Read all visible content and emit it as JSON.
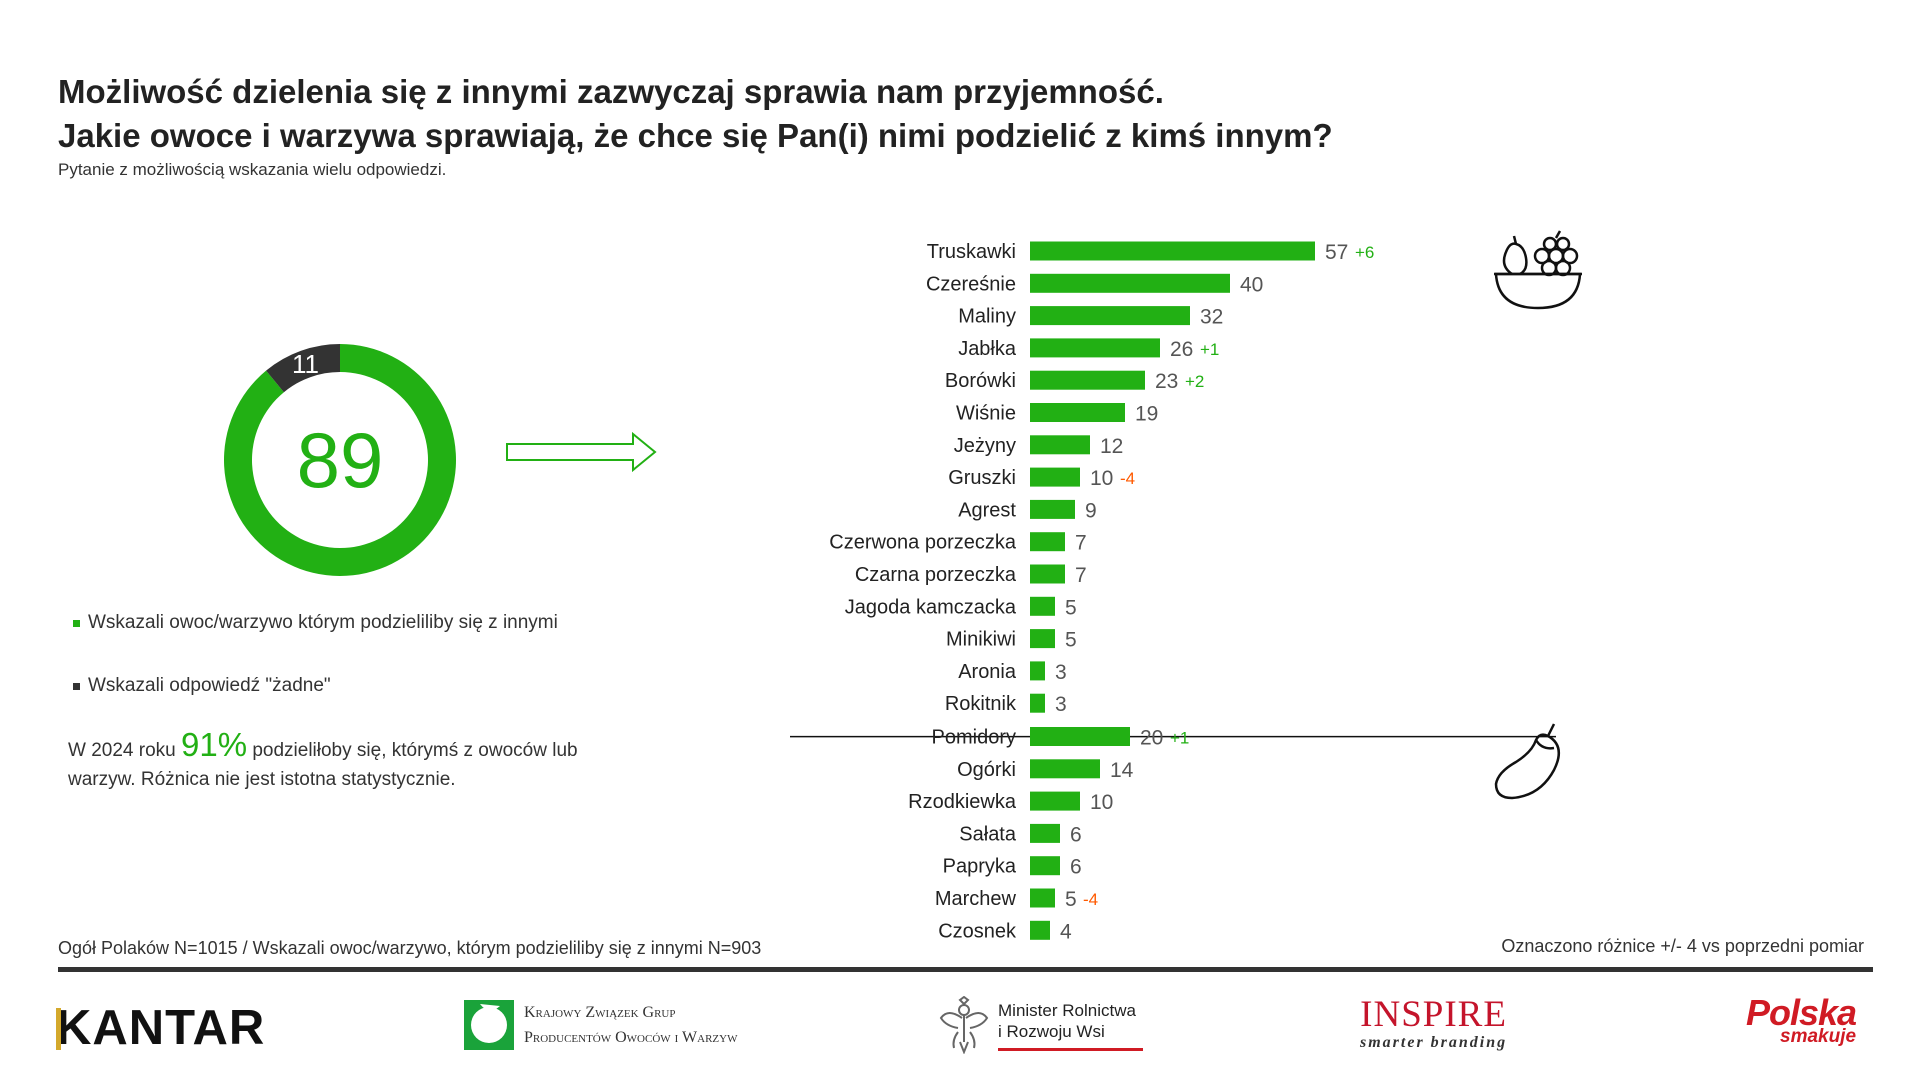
{
  "header": {
    "title_line1": "Możliwość dzielenia się z innymi  zazwyczaj sprawia nam przyjemność.",
    "title_line2": "Jakie owoce i warzywa sprawiają, że chce się Pan(i) nimi podzielić z kimś innym?",
    "subtitle": "Pytanie z możliwością wskazania wielu odpowiedzi."
  },
  "colors": {
    "green": "#22b014",
    "dark": "#333333",
    "red": "#ff5a00"
  },
  "donut": {
    "main_value": 89,
    "main_label": "89",
    "other_value": 11,
    "other_label": "11",
    "legend": [
      {
        "label": "Wskazali owoc/warzywo którym podzieliliby się z innymi",
        "color": "#22b014"
      },
      {
        "label": "Wskazali odpowiedź \"żadne\"",
        "color": "#333333"
      }
    ]
  },
  "note": {
    "prefix": "W 2024 roku ",
    "highlight": "91%",
    "suffix": " podzieliłoby się, którymś z owoców lub warzyw. Różnica nie jest istotna statystycznie."
  },
  "chart_data": {
    "type": "bar",
    "orientation": "horizontal",
    "icons": [
      "fruit-bowl-icon",
      "eggplant-icon"
    ],
    "groups": [
      {
        "categories": [
          "Truskawki",
          "Czereśnie",
          "Maliny",
          "Jabłka",
          "Borówki",
          "Wiśnie",
          "Jeżyny",
          "Gruszki",
          "Agrest",
          "Czerwona porzeczka",
          "Czarna porzeczka",
          "Jagoda kamczacka",
          "Minikiwi",
          "Aronia",
          "Rokitnik"
        ],
        "values": [
          57,
          40,
          32,
          26,
          23,
          19,
          12,
          10,
          9,
          7,
          7,
          5,
          5,
          3,
          3
        ],
        "changes": [
          "+6",
          "",
          "",
          "+1",
          "+2",
          "",
          "",
          "-4",
          "",
          "",
          "",
          "",
          "",
          "",
          ""
        ]
      },
      {
        "categories": [
          "Pomidory",
          "Ogórki",
          "Rzodkiewka",
          "Sałata",
          "Papryka",
          "Marchew",
          "Czosnek"
        ],
        "values": [
          20,
          14,
          10,
          6,
          6,
          5,
          4
        ],
        "changes": [
          "+1",
          "",
          "",
          "",
          "",
          "-4",
          ""
        ]
      }
    ]
  },
  "footer": {
    "left": "Ogół Polaków N=1015 / Wskazali owoc/warzywo, którym podzieliliby się z innymi N=903",
    "right": "Oznaczono różnice +/- 4 vs poprzedni pomiar"
  },
  "logos": {
    "kantar": "KANTAR",
    "kzgp_line1": "Krajowy Związek Grup",
    "kzgp_line2": "Producentów Owoców i Warzyw",
    "minister_line1": "Minister Rolnictwa",
    "minister_line2": "i Rozwoju Wsi",
    "inspire": "INSPIRE",
    "inspire_sub": "smarter branding",
    "polska": "Polska",
    "polska_sub": "smakuje"
  }
}
